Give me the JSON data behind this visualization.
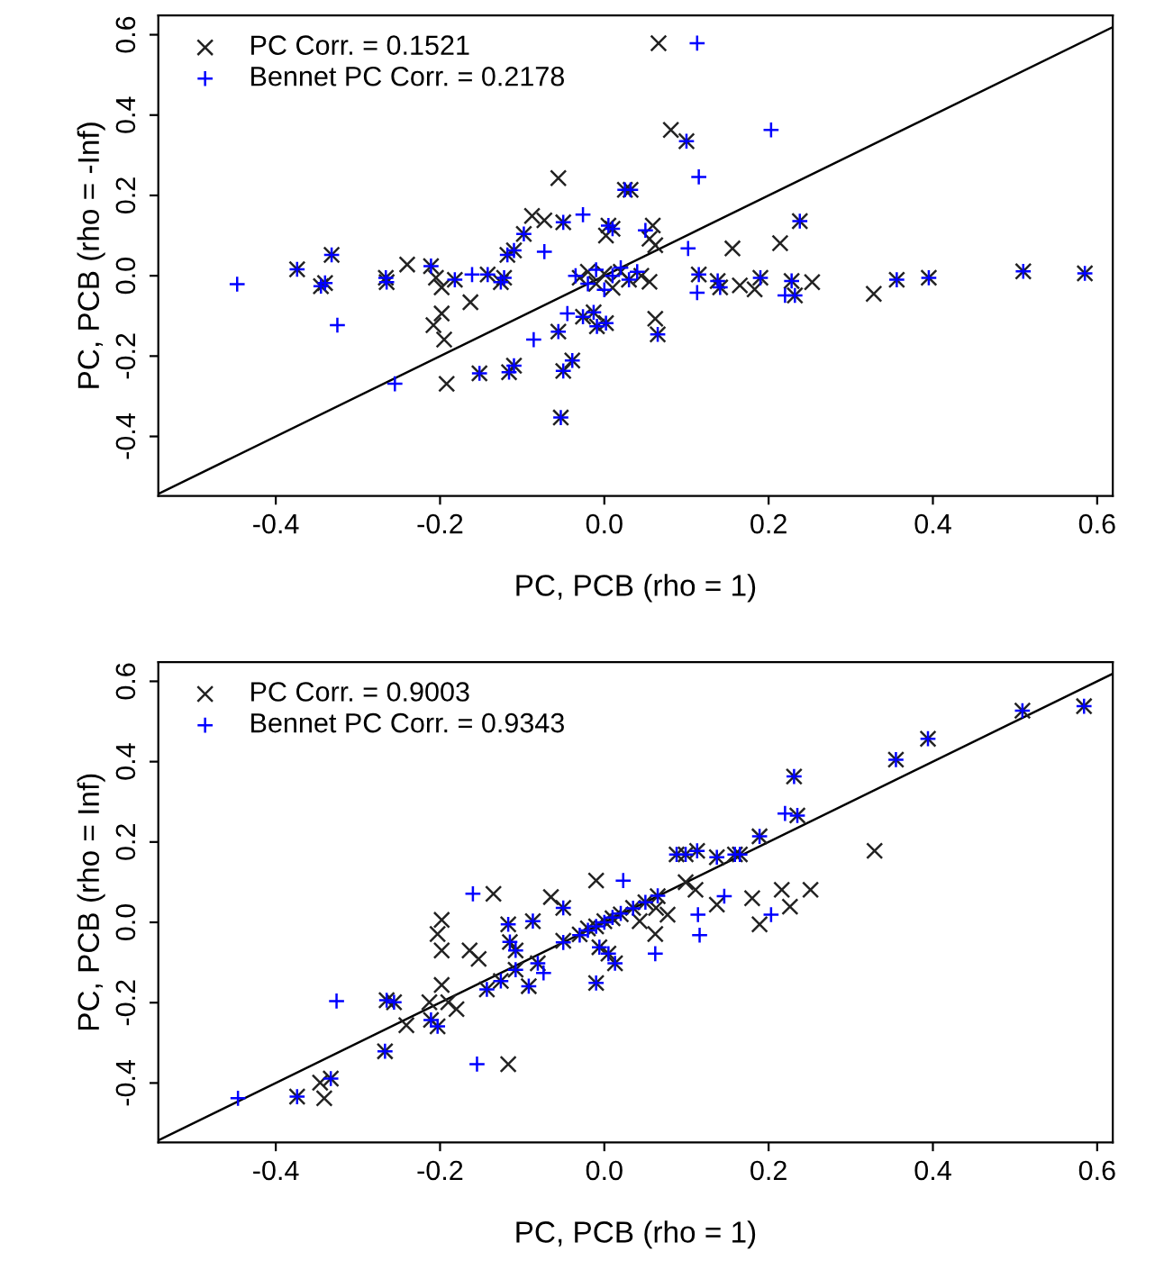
{
  "chart_data": [
    {
      "type": "scatter",
      "xlabel": "PC, PCB (rho = 1)",
      "ylabel": "PC, PCB (rho = -Inf)",
      "xlim": [
        -0.543,
        0.619
      ],
      "ylim": [
        -0.548,
        0.648
      ],
      "xticks": [
        -0.4,
        -0.2,
        {
          "value": 0,
          "label": "0.0"
        },
        0.2,
        0.4,
        0.6
      ],
      "yticks": [
        -0.4,
        -0.2,
        {
          "value": 0,
          "label": "0.0"
        },
        0.2,
        0.4,
        0.6
      ],
      "legend": "top left",
      "grid": false,
      "series": [
        {
          "name": "PC Corr. = 0.1521",
          "color": "#222222",
          "marker": "x",
          "x": [
            -0.374,
            -0.332,
            -0.345,
            -0.34,
            -0.266,
            -0.265,
            -0.24,
            -0.211,
            -0.205,
            -0.198,
            -0.198,
            -0.208,
            -0.195,
            -0.192,
            -0.182,
            -0.163,
            -0.152,
            -0.142,
            -0.126,
            -0.122,
            -0.116,
            -0.11,
            -0.118,
            -0.11,
            -0.098,
            -0.088,
            -0.073,
            -0.056,
            -0.05,
            -0.056,
            -0.05,
            -0.039,
            -0.053,
            -0.026,
            -0.009,
            0.002,
            -0.013,
            -0.03,
            -0.02,
            -0.01,
            0.0,
            0.01,
            0.02,
            0.03,
            0.045,
            0.055,
            0.005,
            0.01,
            0.002,
            0.025,
            0.032,
            0.059,
            0.055,
            0.062,
            0.062,
            0.065,
            0.066,
            0.081,
            0.1,
            0.156,
            0.214,
            0.238,
            0.115,
            0.138,
            0.141,
            0.165,
            0.183,
            0.19,
            0.228,
            0.232,
            0.253,
            0.328,
            0.356,
            0.395,
            0.51,
            0.585
          ],
          "values": [
            0.016,
            0.052,
            -0.026,
            -0.018,
            -0.005,
            -0.016,
            0.028,
            0.024,
            -0.005,
            -0.029,
            -0.094,
            -0.123,
            -0.159,
            -0.269,
            -0.01,
            -0.066,
            -0.243,
            0.003,
            -0.016,
            -0.005,
            -0.24,
            -0.224,
            0.052,
            0.063,
            0.104,
            0.149,
            0.138,
            0.243,
            0.133,
            -0.139,
            -0.237,
            -0.211,
            -0.353,
            -0.102,
            -0.126,
            -0.118,
            -0.091,
            -0.005,
            0.01,
            -0.02,
            0.005,
            -0.03,
            0.01,
            -0.01,
            0.0,
            -0.015,
            0.125,
            0.117,
            0.1,
            0.214,
            0.214,
            0.125,
            0.092,
            0.076,
            -0.107,
            -0.146,
            0.579,
            0.363,
            0.335,
            0.068,
            0.081,
            0.136,
            0.003,
            -0.013,
            -0.029,
            -0.024,
            -0.034,
            -0.005,
            -0.013,
            -0.049,
            -0.016,
            -0.045,
            -0.01,
            -0.005,
            0.011,
            0.006
          ]
        },
        {
          "name": "Bennet PC Corr. = 0.2178",
          "color": "#0000ff",
          "marker": "cross",
          "x": [
            -0.447,
            -0.374,
            -0.332,
            -0.345,
            -0.34,
            -0.325,
            -0.266,
            -0.265,
            -0.255,
            -0.211,
            -0.182,
            -0.161,
            -0.152,
            -0.142,
            -0.126,
            -0.122,
            -0.116,
            -0.11,
            -0.118,
            -0.11,
            -0.098,
            -0.086,
            -0.073,
            -0.026,
            -0.05,
            -0.056,
            -0.05,
            -0.039,
            -0.053,
            -0.045,
            -0.026,
            -0.009,
            0.002,
            -0.013,
            -0.035,
            -0.02,
            -0.01,
            0.0,
            0.01,
            0.02,
            0.03,
            0.04,
            0.005,
            0.01,
            0.025,
            0.032,
            0.05,
            0.065,
            0.1,
            0.113,
            0.203,
            0.115,
            0.102,
            0.238,
            0.115,
            0.138,
            0.141,
            0.113,
            0.19,
            0.228,
            0.232,
            0.22,
            0.356,
            0.395,
            0.51,
            0.585
          ],
          "values": [
            -0.021,
            0.016,
            0.052,
            -0.026,
            -0.018,
            -0.123,
            -0.005,
            -0.016,
            -0.269,
            0.024,
            -0.01,
            0.003,
            -0.243,
            0.003,
            -0.016,
            -0.005,
            -0.24,
            -0.224,
            0.052,
            0.063,
            0.104,
            -0.159,
            0.06,
            0.152,
            0.133,
            -0.139,
            -0.237,
            -0.211,
            -0.353,
            -0.094,
            -0.102,
            -0.126,
            -0.118,
            -0.091,
            0.0,
            -0.02,
            0.015,
            -0.035,
            0.0,
            0.02,
            -0.01,
            0.01,
            0.125,
            0.117,
            0.214,
            0.214,
            0.113,
            -0.146,
            0.335,
            0.579,
            0.363,
            0.246,
            0.068,
            0.136,
            0.003,
            -0.013,
            -0.029,
            -0.042,
            -0.005,
            -0.013,
            -0.049,
            -0.049,
            -0.01,
            -0.005,
            0.011,
            0.006
          ]
        },
        {
          "type": "line",
          "color": "#000000",
          "line_style": "solid",
          "x": [
            -0.543,
            0.619
          ],
          "values": [
            -0.543,
            0.619
          ]
        }
      ]
    },
    {
      "type": "scatter",
      "xlabel": "PC, PCB (rho = 1)",
      "ylabel": "PC, PCB (rho = Inf)",
      "xlim": [
        -0.543,
        0.619
      ],
      "ylim": [
        -0.548,
        0.648
      ],
      "xticks": [
        -0.4,
        -0.2,
        {
          "value": 0,
          "label": "0.0"
        },
        0.2,
        0.4,
        0.6
      ],
      "yticks": [
        -0.4,
        -0.2,
        {
          "value": 0,
          "label": "0.0"
        },
        0.2,
        0.4,
        0.6
      ],
      "legend": "top left",
      "grid": false,
      "series": [
        {
          "name": "PC Corr. = 0.9003",
          "color": "#222222",
          "marker": "x",
          "x": [
            -0.374,
            -0.346,
            -0.341,
            -0.333,
            -0.267,
            -0.265,
            -0.256,
            -0.241,
            -0.213,
            -0.198,
            -0.203,
            -0.198,
            -0.198,
            -0.211,
            -0.203,
            -0.19,
            -0.18,
            -0.135,
            -0.117,
            -0.164,
            -0.153,
            -0.143,
            -0.126,
            -0.108,
            -0.092,
            -0.117,
            -0.115,
            -0.108,
            -0.087,
            -0.065,
            -0.05,
            -0.081,
            -0.01,
            -0.01,
            -0.05,
            -0.03,
            -0.02,
            -0.01,
            0.0,
            0.01,
            0.02,
            0.035,
            0.05,
            0.065,
            -0.006,
            0.005,
            0.013,
            0.043,
            0.062,
            0.077,
            0.063,
            0.111,
            0.099,
            0.088,
            0.099,
            0.113,
            0.137,
            0.159,
            0.165,
            0.137,
            0.18,
            0.189,
            0.216,
            0.226,
            0.251,
            0.189,
            0.235,
            0.231,
            0.329,
            0.355,
            0.394,
            0.509,
            0.584
          ],
          "values": [
            -0.434,
            -0.399,
            -0.438,
            -0.389,
            -0.321,
            -0.194,
            -0.199,
            -0.256,
            -0.199,
            -0.156,
            -0.029,
            0.006,
            -0.07,
            -0.243,
            -0.259,
            -0.199,
            -0.216,
            0.071,
            -0.353,
            -0.07,
            -0.091,
            -0.167,
            -0.146,
            -0.118,
            -0.159,
            -0.005,
            -0.049,
            -0.07,
            0.003,
            0.063,
            0.036,
            -0.102,
            -0.151,
            0.104,
            -0.046,
            -0.03,
            -0.015,
            -0.01,
            0.003,
            0.01,
            0.02,
            0.036,
            0.05,
            0.065,
            -0.062,
            -0.078,
            -0.102,
            0.003,
            -0.029,
            0.019,
            0.036,
            0.081,
            0.1,
            0.169,
            0.169,
            0.178,
            0.162,
            0.169,
            0.169,
            0.044,
            0.06,
            -0.005,
            0.081,
            0.039,
            0.081,
            0.214,
            0.266,
            0.363,
            0.178,
            0.405,
            0.457,
            0.527,
            0.538
          ]
        },
        {
          "name": "Bennet PC Corr. = 0.9343",
          "color": "#0000ff",
          "marker": "cross",
          "x": [
            -0.446,
            -0.374,
            -0.333,
            -0.326,
            -0.267,
            -0.265,
            -0.256,
            -0.211,
            -0.203,
            -0.16,
            -0.155,
            -0.143,
            -0.126,
            -0.108,
            -0.092,
            -0.117,
            -0.115,
            -0.108,
            -0.087,
            -0.05,
            -0.074,
            -0.081,
            -0.01,
            0.023,
            -0.05,
            -0.03,
            -0.02,
            -0.01,
            0.0,
            0.01,
            0.02,
            0.035,
            0.05,
            0.065,
            -0.006,
            0.005,
            0.013,
            0.062,
            0.114,
            0.116,
            0.088,
            0.099,
            0.113,
            0.137,
            0.159,
            0.165,
            0.146,
            0.203,
            0.189,
            0.22,
            0.235,
            0.231,
            0.355,
            0.394,
            0.509,
            0.584
          ],
          "values": [
            -0.438,
            -0.434,
            -0.389,
            -0.196,
            -0.321,
            -0.194,
            -0.199,
            -0.243,
            -0.259,
            0.071,
            -0.353,
            -0.167,
            -0.146,
            -0.118,
            -0.159,
            -0.005,
            -0.049,
            -0.07,
            0.003,
            0.036,
            -0.126,
            -0.102,
            -0.151,
            0.104,
            -0.05,
            -0.032,
            -0.02,
            -0.01,
            0.0,
            0.012,
            0.022,
            0.035,
            0.05,
            0.066,
            -0.062,
            -0.078,
            -0.102,
            -0.078,
            0.019,
            -0.032,
            0.169,
            0.169,
            0.178,
            0.162,
            0.169,
            0.169,
            0.065,
            0.019,
            0.214,
            0.271,
            0.266,
            0.363,
            0.405,
            0.457,
            0.527,
            0.538
          ]
        },
        {
          "type": "line",
          "color": "#000000",
          "line_style": "solid",
          "x": [
            -0.543,
            0.619
          ],
          "values": [
            -0.543,
            0.619
          ]
        }
      ]
    }
  ]
}
